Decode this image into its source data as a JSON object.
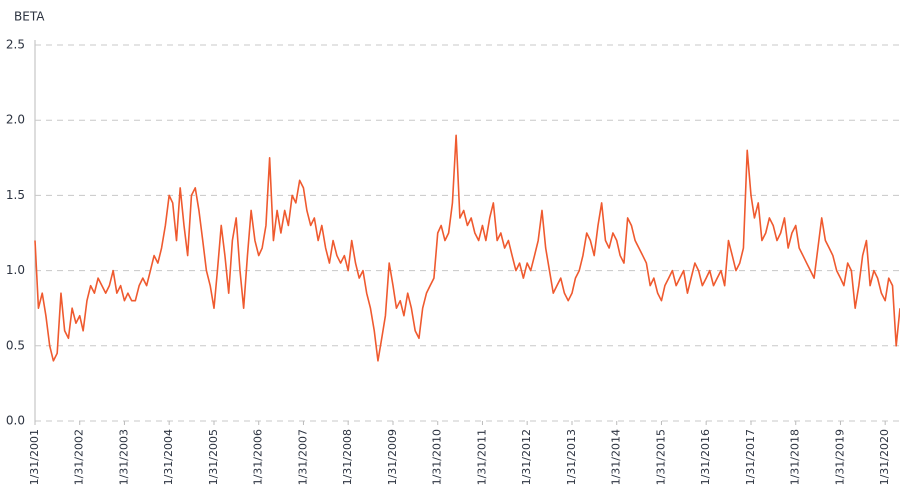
{
  "chart_data": {
    "type": "line",
    "ylabel": "BETA",
    "color": "#ef5a2f",
    "xlim": [
      "1/31/2001",
      "5/31/2020"
    ],
    "xticks": [
      "1/31/2001",
      "1/31/2002",
      "1/31/2003",
      "1/31/2004",
      "1/31/2005",
      "1/31/2006",
      "1/31/2007",
      "1/31/2008",
      "1/31/2009",
      "1/31/2010",
      "1/31/2011",
      "1/31/2012",
      "1/31/2013",
      "1/31/2014",
      "1/31/2015",
      "1/31/2016",
      "1/31/2017",
      "1/31/2018",
      "1/31/2019",
      "1/31/2020"
    ],
    "ylim": [
      0,
      2.5
    ],
    "yticks": [
      {
        "value": 0,
        "label": "0.0"
      },
      {
        "value": 0.5,
        "label": "0.5"
      },
      {
        "value": 1,
        "label": "1.0"
      },
      {
        "value": 1.5,
        "label": "1.5"
      },
      {
        "value": 2,
        "label": "2.0"
      },
      {
        "value": 2.5,
        "label": "2.5"
      }
    ],
    "grid": true,
    "x": [
      "1/31/2001",
      "2/28/2001",
      "3/31/2001",
      "4/30/2001",
      "5/31/2001",
      "6/30/2001",
      "7/31/2001",
      "8/31/2001",
      "9/30/2001",
      "10/31/2001",
      "11/30/2001",
      "12/31/2001",
      "1/31/2002",
      "2/28/2002",
      "3/31/2002",
      "4/30/2002",
      "5/31/2002",
      "6/30/2002",
      "7/31/2002",
      "8/31/2002",
      "9/30/2002",
      "10/31/2002",
      "11/30/2002",
      "12/31/2002",
      "1/31/2003",
      "2/28/2003",
      "3/31/2003",
      "4/30/2003",
      "5/31/2003",
      "6/30/2003",
      "7/31/2003",
      "8/31/2003",
      "9/30/2003",
      "10/31/2003",
      "11/30/2003",
      "12/31/2003",
      "1/31/2004",
      "2/29/2004",
      "3/31/2004",
      "4/30/2004",
      "5/31/2004",
      "6/30/2004",
      "7/31/2004",
      "8/31/2004",
      "9/30/2004",
      "10/31/2004",
      "11/30/2004",
      "12/31/2004",
      "1/31/2005",
      "2/28/2005",
      "3/31/2005",
      "4/30/2005",
      "5/31/2005",
      "6/30/2005",
      "7/31/2005",
      "8/31/2005",
      "9/30/2005",
      "10/31/2005",
      "11/30/2005",
      "12/31/2005",
      "1/31/2006",
      "2/28/2006",
      "3/31/2006",
      "4/30/2006",
      "5/31/2006",
      "6/30/2006",
      "7/31/2006",
      "8/31/2006",
      "9/30/2006",
      "10/31/2006",
      "11/30/2006",
      "12/31/2006",
      "1/31/2007",
      "2/28/2007",
      "3/31/2007",
      "4/30/2007",
      "5/31/2007",
      "6/30/2007",
      "7/31/2007",
      "8/31/2007",
      "9/30/2007",
      "10/31/2007",
      "11/30/2007",
      "12/31/2007",
      "1/31/2008",
      "2/29/2008",
      "3/31/2008",
      "4/30/2008",
      "5/31/2008",
      "6/30/2008",
      "7/31/2008",
      "8/31/2008",
      "9/30/2008",
      "10/31/2008",
      "11/30/2008",
      "12/31/2008",
      "1/31/2009",
      "2/28/2009",
      "3/31/2009",
      "4/30/2009",
      "5/31/2009",
      "6/30/2009",
      "7/31/2009",
      "8/31/2009",
      "9/30/2009",
      "10/31/2009",
      "11/30/2009",
      "12/31/2009",
      "1/31/2010",
      "2/28/2010",
      "3/31/2010",
      "4/30/2010",
      "5/31/2010",
      "6/30/2010",
      "7/31/2010",
      "8/31/2010",
      "9/30/2010",
      "10/31/2010",
      "11/30/2010",
      "12/31/2010",
      "1/31/2011",
      "2/28/2011",
      "3/31/2011",
      "4/30/2011",
      "5/31/2011",
      "6/30/2011",
      "7/31/2011",
      "8/31/2011",
      "9/30/2011",
      "10/31/2011",
      "11/30/2011",
      "12/31/2011",
      "1/31/2012",
      "2/29/2012",
      "3/31/2012",
      "4/30/2012",
      "5/31/2012",
      "6/30/2012",
      "7/31/2012",
      "8/31/2012",
      "9/30/2012",
      "10/31/2012",
      "11/30/2012",
      "12/31/2012",
      "1/31/2013",
      "2/28/2013",
      "3/31/2013",
      "4/30/2013",
      "5/31/2013",
      "6/30/2013",
      "7/31/2013",
      "8/31/2013",
      "9/30/2013",
      "10/31/2013",
      "11/30/2013",
      "12/31/2013",
      "1/31/2014",
      "2/28/2014",
      "3/31/2014",
      "4/30/2014",
      "5/31/2014",
      "6/30/2014",
      "7/31/2014",
      "8/31/2014",
      "9/30/2014",
      "10/31/2014",
      "11/30/2014",
      "12/31/2014",
      "1/31/2015",
      "2/28/2015",
      "3/31/2015",
      "4/30/2015",
      "5/31/2015",
      "6/30/2015",
      "7/31/2015",
      "8/31/2015",
      "9/30/2015",
      "10/31/2015",
      "11/30/2015",
      "12/31/2015",
      "1/31/2016",
      "2/29/2016",
      "3/31/2016",
      "4/30/2016",
      "5/31/2016",
      "6/30/2016",
      "7/31/2016",
      "8/31/2016",
      "9/30/2016",
      "10/31/2016",
      "11/30/2016",
      "12/31/2016",
      "1/31/2017",
      "2/28/2017",
      "3/31/2017",
      "4/30/2017",
      "5/31/2017",
      "6/30/2017",
      "7/31/2017",
      "8/31/2017",
      "9/30/2017",
      "10/31/2017",
      "11/30/2017",
      "12/31/2017",
      "1/31/2018",
      "2/28/2018",
      "3/31/2018",
      "4/30/2018",
      "5/31/2018",
      "6/30/2018",
      "7/31/2018",
      "8/31/2018",
      "9/30/2018",
      "10/31/2018",
      "11/30/2018",
      "12/31/2018",
      "1/31/2019",
      "2/28/2019",
      "3/31/2019",
      "4/30/2019",
      "5/31/2019",
      "6/30/2019",
      "7/31/2019",
      "8/31/2019",
      "9/30/2019",
      "10/31/2019",
      "11/30/2019",
      "12/31/2019",
      "1/31/2020",
      "2/29/2020",
      "3/31/2020",
      "4/30/2020",
      "5/31/2020"
    ],
    "values": [
      1.2,
      0.75,
      0.85,
      0.7,
      0.5,
      0.4,
      0.45,
      0.85,
      0.6,
      0.55,
      0.75,
      0.65,
      0.7,
      0.6,
      0.8,
      0.9,
      0.85,
      0.95,
      0.9,
      0.85,
      0.9,
      1.0,
      0.85,
      0.9,
      0.8,
      0.85,
      0.8,
      0.8,
      0.9,
      0.95,
      0.9,
      1.0,
      1.1,
      1.05,
      1.15,
      1.3,
      1.5,
      1.45,
      1.2,
      1.55,
      1.3,
      1.1,
      1.5,
      1.55,
      1.4,
      1.2,
      1.0,
      0.9,
      0.75,
      1.0,
      1.3,
      1.1,
      0.85,
      1.2,
      1.35,
      1.0,
      0.75,
      1.1,
      1.4,
      1.2,
      1.1,
      1.15,
      1.3,
      1.75,
      1.2,
      1.4,
      1.25,
      1.4,
      1.3,
      1.5,
      1.45,
      1.6,
      1.55,
      1.4,
      1.3,
      1.35,
      1.2,
      1.3,
      1.15,
      1.05,
      1.2,
      1.1,
      1.05,
      1.1,
      1.0,
      1.2,
      1.05,
      0.95,
      1.0,
      0.85,
      0.75,
      0.6,
      0.4,
      0.55,
      0.7,
      1.05,
      0.9,
      0.75,
      0.8,
      0.7,
      0.85,
      0.75,
      0.6,
      0.55,
      0.75,
      0.85,
      0.9,
      0.95,
      1.25,
      1.3,
      1.2,
      1.25,
      1.45,
      1.9,
      1.35,
      1.4,
      1.3,
      1.35,
      1.25,
      1.2,
      1.3,
      1.2,
      1.35,
      1.45,
      1.2,
      1.25,
      1.15,
      1.2,
      1.1,
      1.0,
      1.05,
      0.95,
      1.05,
      1.0,
      1.1,
      1.2,
      1.4,
      1.15,
      1.0,
      0.85,
      0.9,
      0.95,
      0.85,
      0.8,
      0.85,
      0.95,
      1.0,
      1.1,
      1.25,
      1.2,
      1.1,
      1.3,
      1.45,
      1.2,
      1.15,
      1.25,
      1.2,
      1.1,
      1.05,
      1.35,
      1.3,
      1.2,
      1.15,
      1.1,
      1.05,
      0.9,
      0.95,
      0.85,
      0.8,
      0.9,
      0.95,
      1.0,
      0.9,
      0.95,
      1.0,
      0.85,
      0.95,
      1.05,
      1.0,
      0.9,
      0.95,
      1.0,
      0.9,
      0.95,
      1.0,
      0.9,
      1.2,
      1.1,
      1.0,
      1.05,
      1.15,
      1.8,
      1.5,
      1.35,
      1.45,
      1.2,
      1.25,
      1.35,
      1.3,
      1.2,
      1.25,
      1.35,
      1.15,
      1.25,
      1.3,
      1.15,
      1.1,
      1.05,
      1.0,
      0.95,
      1.15,
      1.35,
      1.2,
      1.15,
      1.1,
      1.0,
      0.95,
      0.9,
      1.05,
      1.0,
      0.75,
      0.9,
      1.1,
      1.2,
      0.9,
      1.0,
      0.95,
      0.85,
      0.8,
      0.95,
      0.9,
      0.5,
      0.75
    ]
  }
}
